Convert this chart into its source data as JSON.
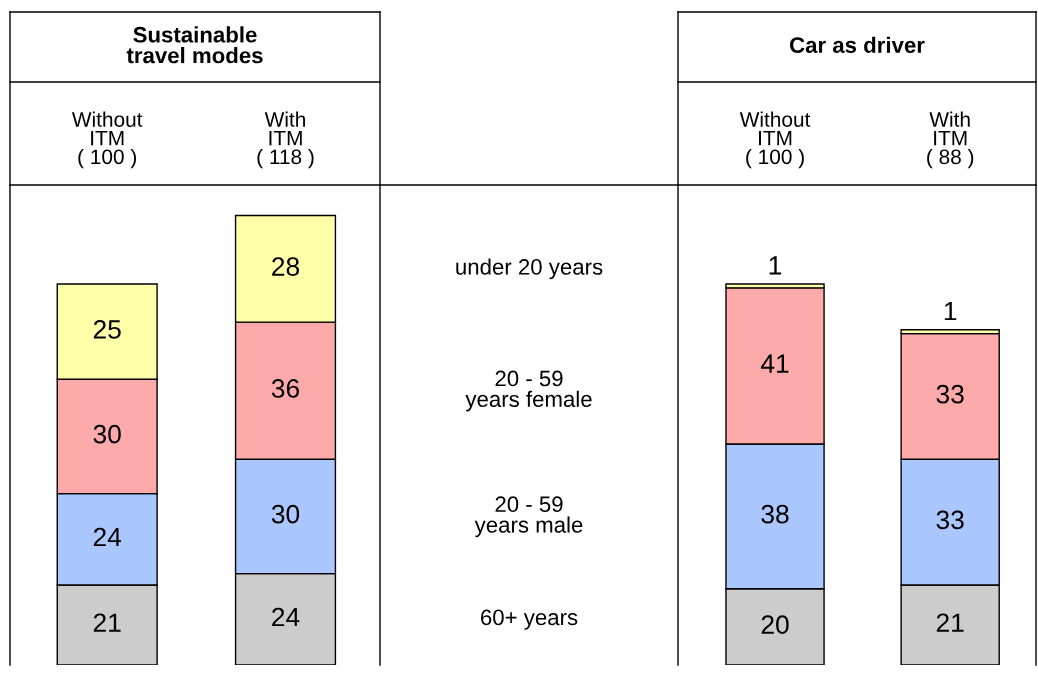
{
  "chart_data": [
    {
      "type": "bar",
      "title": "Sustainable\ntravel modes",
      "categories": [
        "Without\nITM\n( 100 )",
        "With\nITM\n( 118 )"
      ],
      "stacked": true,
      "data_labels": true,
      "tick_labels": "x",
      "legend": false,
      "ylim": [
        0,
        126
      ],
      "series": [
        {
          "name": "60+ years",
          "color": "#cccccc",
          "values": [
            21,
            24
          ]
        },
        {
          "name": "20 - 59\nyears male",
          "color": "#aac8ff",
          "values": [
            24,
            30
          ]
        },
        {
          "name": "20 - 59\nyears female",
          "color": "#ffaaaa",
          "values": [
            30,
            36
          ]
        },
        {
          "name": "under 20 years",
          "color": "#ffffaa",
          "values": [
            25,
            28
          ]
        }
      ]
    },
    {
      "type": "bar",
      "title": "Car as driver",
      "categories": [
        "Without\nITM\n( 100 )",
        "With\nITM\n( 88 )"
      ],
      "stacked": true,
      "data_labels": true,
      "tick_labels": "x",
      "legend": false,
      "ylim": [
        0,
        126
      ],
      "series": [
        {
          "color": "#cccccc",
          "values": [
            20,
            21
          ]
        },
        {
          "color": "#aac8ff",
          "values": [
            38,
            33
          ]
        },
        {
          "color": "#ffaaaa",
          "values": [
            41,
            33
          ]
        },
        {
          "color": "#ffffaa",
          "values": [
            1,
            1
          ]
        }
      ]
    }
  ]
}
